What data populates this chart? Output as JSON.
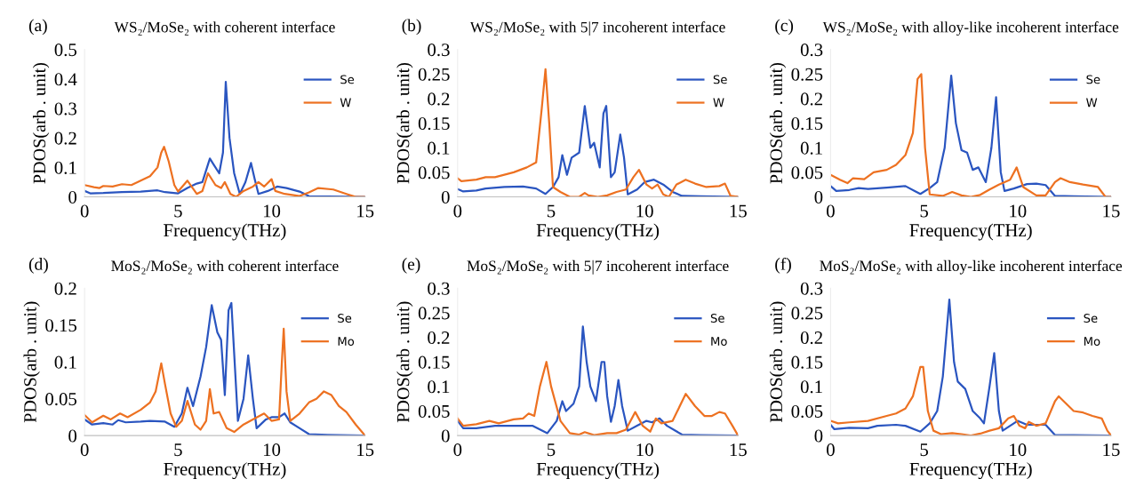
{
  "chart_data": [
    {
      "type": "line",
      "title": "WS₂/MoSe₂ with coherent interface",
      "annotations": [
        "(a)"
      ],
      "xlabel": "Frequency(THz)",
      "ylabel": "PDOS(arb . unit)",
      "xlim": [
        0,
        15
      ],
      "xticks": [
        0,
        5,
        10,
        15
      ],
      "ylim": [
        0,
        0.5
      ],
      "yticks": [
        0,
        0.1,
        0.2,
        0.3,
        0.4,
        0.5
      ],
      "grid": false,
      "legend": "upper right",
      "marker": "none",
      "line_style": "solid",
      "series": [
        {
          "name": "Se",
          "color": "#2a55c0",
          "x": [
            0,
            0.3,
            1,
            2,
            3,
            3.9,
            4.3,
            5,
            5.5,
            6,
            6.3,
            6.5,
            6.7,
            6.9,
            7.2,
            7.4,
            7.55,
            7.75,
            8.0,
            8.3,
            8.6,
            8.9,
            9.1,
            9.3,
            9.8,
            10.3,
            10.8,
            11.5,
            12,
            13,
            15
          ],
          "values": [
            0.02,
            0.012,
            0.013,
            0.016,
            0.018,
            0.022,
            0.016,
            0.012,
            0.03,
            0.045,
            0.05,
            0.09,
            0.13,
            0.11,
            0.08,
            0.15,
            0.39,
            0.2,
            0.08,
            0.01,
            0.05,
            0.115,
            0.06,
            0.01,
            0.02,
            0.035,
            0.03,
            0.018,
            0.002,
            0.001,
            0
          ]
        },
        {
          "name": "W",
          "color": "#ed7121",
          "x": [
            0,
            0.5,
            0.8,
            1,
            1.5,
            2,
            2.5,
            3,
            3.5,
            3.9,
            4.1,
            4.25,
            4.5,
            4.8,
            5.0,
            5.5,
            6,
            6.3,
            6.6,
            7,
            7.3,
            7.5,
            7.8,
            8.1,
            8.5,
            9,
            9.3,
            9.6,
            10.0,
            10.2,
            10.7,
            11.5,
            12,
            12.5,
            13.3,
            14,
            14.5,
            15
          ],
          "values": [
            0.04,
            0.033,
            0.03,
            0.037,
            0.035,
            0.043,
            0.04,
            0.055,
            0.07,
            0.1,
            0.15,
            0.17,
            0.12,
            0.04,
            0.018,
            0.055,
            0.01,
            0.02,
            0.08,
            0.04,
            0.03,
            0.05,
            0.01,
            0,
            0.02,
            0.035,
            0.05,
            0.035,
            0.06,
            0.02,
            0.01,
            0.003,
            0.015,
            0.03,
            0.025,
            0.01,
            0,
            0
          ]
        }
      ]
    },
    {
      "type": "line",
      "title": "WS₂/MoSe₂ with 5|7 incoherent interface",
      "annotations": [
        "(b)"
      ],
      "xlabel": "Frequency(THz)",
      "ylabel": "PDOS(arb . unit)",
      "xlim": [
        0,
        15
      ],
      "xticks": [
        0,
        5,
        10,
        15
      ],
      "ylim": [
        0,
        0.3
      ],
      "yticks": [
        0,
        0.05,
        0.1,
        0.15,
        0.2,
        0.25,
        0.3
      ],
      "grid": false,
      "legend": "upper right",
      "marker": "none",
      "line_style": "solid",
      "series": [
        {
          "name": "Se",
          "color": "#2a55c0",
          "x": [
            0,
            0.3,
            1,
            1.5,
            2.5,
            3.5,
            4.2,
            4.7,
            5.1,
            5.4,
            5.6,
            5.85,
            6.1,
            6.5,
            6.8,
            7.1,
            7.3,
            7.6,
            7.8,
            7.95,
            8.2,
            8.4,
            8.7,
            8.9,
            9.1,
            9.6,
            10,
            10.5,
            11,
            11.5,
            12,
            13,
            15
          ],
          "values": [
            0.016,
            0.011,
            0.013,
            0.017,
            0.02,
            0.021,
            0.017,
            0.006,
            0.02,
            0.04,
            0.085,
            0.045,
            0.08,
            0.09,
            0.185,
            0.1,
            0.11,
            0.06,
            0.17,
            0.185,
            0.04,
            0.05,
            0.127,
            0.08,
            0.005,
            0.015,
            0.03,
            0.035,
            0.025,
            0.01,
            0.002,
            0.001,
            0
          ]
        },
        {
          "name": "W",
          "color": "#ed7121",
          "x": [
            0,
            0.2,
            1,
            1.5,
            2,
            3,
            3.7,
            4.2,
            4.5,
            4.7,
            4.9,
            5.1,
            5.5,
            6,
            6.5,
            6.8,
            7,
            7.5,
            8,
            8.5,
            9,
            9.4,
            9.7,
            10.1,
            10.4,
            10.7,
            11,
            11.3,
            11.7,
            12.2,
            12.7,
            13.3,
            14,
            14.3,
            14.6,
            15
          ],
          "values": [
            0.038,
            0.032,
            0.035,
            0.04,
            0.04,
            0.05,
            0.06,
            0.07,
            0.18,
            0.26,
            0.15,
            0.02,
            0.01,
            0,
            0,
            0.008,
            0.003,
            0,
            0.003,
            0.01,
            0.015,
            0.04,
            0.055,
            0.025,
            0.017,
            0.025,
            0.005,
            0,
            0.025,
            0.035,
            0.027,
            0.02,
            0.022,
            0.027,
            0.002,
            0
          ]
        }
      ]
    },
    {
      "type": "line",
      "title": "WS₂/MoSe₂ with alloy-like incoherent interface",
      "annotations": [
        "(c)"
      ],
      "xlabel": "Frequency(THz)",
      "ylabel": "PDOS(arb . unit)",
      "xlim": [
        0,
        15
      ],
      "xticks": [
        0,
        5,
        10,
        15
      ],
      "ylim": [
        0,
        0.3
      ],
      "yticks": [
        0,
        0.05,
        0.1,
        0.15,
        0.2,
        0.25,
        0.3
      ],
      "grid": false,
      "legend": "upper right",
      "marker": "none",
      "line_style": "solid",
      "series": [
        {
          "name": "Se",
          "color": "#2a55c0",
          "x": [
            0,
            0.3,
            1,
            1.5,
            2,
            3,
            4,
            4.5,
            4.8,
            5.3,
            5.7,
            6.1,
            6.45,
            6.7,
            7,
            7.3,
            7.6,
            7.9,
            8.3,
            8.6,
            8.85,
            9.1,
            9.3,
            9.8,
            10.5,
            11,
            11.5,
            12,
            13,
            15
          ],
          "values": [
            0.022,
            0.012,
            0.014,
            0.018,
            0.016,
            0.019,
            0.022,
            0.012,
            0.006,
            0.018,
            0.03,
            0.1,
            0.247,
            0.15,
            0.095,
            0.09,
            0.055,
            0.06,
            0.03,
            0.1,
            0.203,
            0.05,
            0.012,
            0.017,
            0.026,
            0.027,
            0.024,
            0.002,
            0.001,
            0
          ]
        },
        {
          "name": "W",
          "color": "#ed7121",
          "x": [
            0,
            0.5,
            0.9,
            1.2,
            1.8,
            2.3,
            3,
            3.5,
            4,
            4.4,
            4.65,
            4.85,
            5.05,
            5.3,
            6,
            6.5,
            7,
            7.5,
            8,
            8.5,
            9,
            9.6,
            9.95,
            10.3,
            11,
            11.5,
            12,
            12.3,
            12.8,
            13.5,
            14.3,
            14.7,
            15
          ],
          "values": [
            0.045,
            0.035,
            0.028,
            0.038,
            0.036,
            0.05,
            0.055,
            0.065,
            0.085,
            0.13,
            0.24,
            0.25,
            0.1,
            0.005,
            0.002,
            0.01,
            0.003,
            0,
            0.004,
            0.015,
            0.025,
            0.035,
            0.06,
            0.02,
            0.003,
            0.003,
            0.03,
            0.038,
            0.03,
            0.025,
            0.02,
            0,
            0
          ]
        }
      ]
    },
    {
      "type": "line",
      "title": "MoS₂/MoSe₂ with coherent interface",
      "annotations": [
        "(d)"
      ],
      "xlabel": "Frequency(THz)",
      "ylabel": "PDOS(arb . unit)",
      "xlim": [
        0,
        15
      ],
      "xticks": [
        0,
        5,
        10,
        15
      ],
      "ylim": [
        0,
        0.2
      ],
      "yticks": [
        0,
        0.05,
        0.1,
        0.15,
        0.2
      ],
      "grid": false,
      "legend": "upper right",
      "marker": "none",
      "line_style": "solid",
      "series": [
        {
          "name": "Se",
          "color": "#2a55c0",
          "x": [
            0,
            0.4,
            1,
            1.5,
            1.8,
            2.2,
            3,
            3.5,
            4.3,
            4.8,
            5.2,
            5.5,
            5.8,
            6.2,
            6.5,
            6.8,
            7.1,
            7.3,
            7.5,
            7.7,
            7.85,
            8.2,
            8.5,
            8.75,
            9.0,
            9.2,
            9.7,
            10,
            10.4,
            10.7,
            11,
            11.5,
            12,
            13,
            15
          ],
          "values": [
            0.022,
            0.015,
            0.017,
            0.015,
            0.021,
            0.018,
            0.019,
            0.02,
            0.019,
            0.012,
            0.03,
            0.065,
            0.04,
            0.08,
            0.12,
            0.177,
            0.14,
            0.13,
            0.055,
            0.17,
            0.18,
            0.02,
            0.05,
            0.109,
            0.05,
            0.01,
            0.022,
            0.025,
            0.025,
            0.03,
            0.018,
            0.01,
            0.002,
            0.001,
            0
          ]
        },
        {
          "name": "Mo",
          "color": "#ed7121",
          "x": [
            0,
            0.4,
            1,
            1.4,
            1.9,
            2.3,
            3,
            3.5,
            3.8,
            4.1,
            4.3,
            4.6,
            4.9,
            5.2,
            5.5,
            5.9,
            6.2,
            6.5,
            6.7,
            6.9,
            7.2,
            7.6,
            8,
            8.5,
            9,
            9.6,
            10,
            10.4,
            10.55,
            10.65,
            10.8,
            11,
            11.5,
            12,
            12.4,
            12.8,
            13.2,
            13.6,
            14,
            14.5,
            15
          ],
          "values": [
            0.028,
            0.018,
            0.027,
            0.022,
            0.03,
            0.025,
            0.035,
            0.045,
            0.06,
            0.098,
            0.07,
            0.03,
            0.012,
            0.02,
            0.047,
            0.015,
            0.008,
            0.02,
            0.063,
            0.03,
            0.032,
            0.01,
            0.005,
            0.015,
            0.022,
            0.03,
            0.02,
            0.022,
            0.1,
            0.145,
            0.06,
            0.02,
            0.03,
            0.045,
            0.05,
            0.06,
            0.055,
            0.04,
            0.032,
            0.015,
            0
          ]
        }
      ]
    },
    {
      "type": "line",
      "title": "MoS₂/MoSe₂ with 5|7 incoherent interface",
      "annotations": [
        "(e)"
      ],
      "xlabel": "Frequency(THz)",
      "ylabel": "PDOS(arb . unit)",
      "xlim": [
        0,
        15
      ],
      "xticks": [
        0,
        5,
        10,
        15
      ],
      "ylim": [
        0,
        0.3
      ],
      "yticks": [
        0,
        0.05,
        0.1,
        0.15,
        0.2,
        0.25,
        0.3
      ],
      "grid": false,
      "legend": "upper right",
      "marker": "none",
      "line_style": "solid",
      "series": [
        {
          "name": "Se",
          "color": "#2a55c0",
          "x": [
            0,
            0.3,
            1,
            2,
            3,
            4,
            4.8,
            5.3,
            5.6,
            5.8,
            6.2,
            6.5,
            6.7,
            6.9,
            7.1,
            7.4,
            7.7,
            7.85,
            8.0,
            8.2,
            8.4,
            8.6,
            8.8,
            9.1,
            9.6,
            10.1,
            10.4,
            10.8,
            11.2,
            12,
            13,
            15
          ],
          "values": [
            0.03,
            0.015,
            0.015,
            0.02,
            0.02,
            0.02,
            0.005,
            0.03,
            0.07,
            0.05,
            0.065,
            0.1,
            0.222,
            0.15,
            0.1,
            0.07,
            0.15,
            0.15,
            0.08,
            0.028,
            0.06,
            0.113,
            0.06,
            0.01,
            0.02,
            0.03,
            0.027,
            0.035,
            0.02,
            0.002,
            0.001,
            0
          ]
        },
        {
          "name": "Mo",
          "color": "#ed7121",
          "x": [
            0,
            0.3,
            1,
            1.7,
            2.2,
            3,
            3.5,
            3.8,
            4.1,
            4.4,
            4.75,
            5.0,
            5.5,
            6,
            6.5,
            6.8,
            7.3,
            8,
            8.5,
            9,
            9.5,
            9.9,
            10.3,
            10.6,
            10.9,
            11.5,
            12.2,
            12.7,
            13.2,
            13.6,
            14,
            14.3,
            14.7,
            15
          ],
          "values": [
            0.035,
            0.02,
            0.023,
            0.03,
            0.025,
            0.033,
            0.035,
            0.045,
            0.04,
            0.1,
            0.15,
            0.1,
            0.03,
            0.005,
            0.002,
            0.007,
            0.001,
            0.005,
            0.005,
            0.012,
            0.048,
            0.02,
            0.008,
            0.035,
            0.025,
            0.03,
            0.085,
            0.06,
            0.04,
            0.04,
            0.048,
            0.045,
            0.02,
            0
          ]
        }
      ]
    },
    {
      "type": "line",
      "title": "MoS₂/MoSe₂ with alloy-like incoherent interface",
      "annotations": [
        "(f)"
      ],
      "xlabel": "Frequency(THz)",
      "ylabel": "PDOS(arb . unit)",
      "xlim": [
        0,
        15
      ],
      "xticks": [
        0,
        5,
        10,
        15
      ],
      "ylim": [
        0,
        0.3
      ],
      "yticks": [
        0,
        0.05,
        0.1,
        0.15,
        0.2,
        0.25,
        0.3
      ],
      "grid": false,
      "legend": "upper right",
      "marker": "none",
      "line_style": "solid",
      "series": [
        {
          "name": "Se",
          "color": "#2a55c0",
          "x": [
            0,
            0.2,
            1,
            2,
            2.5,
            3.5,
            4,
            4.8,
            5.3,
            5.7,
            6.0,
            6.35,
            6.6,
            6.8,
            7.2,
            7.6,
            8,
            8.2,
            8.5,
            8.75,
            9.0,
            9.2,
            9.6,
            10.0,
            10.5,
            11.5,
            12,
            13,
            15
          ],
          "values": [
            0.022,
            0.013,
            0.016,
            0.015,
            0.02,
            0.022,
            0.02,
            0.008,
            0.025,
            0.05,
            0.12,
            0.277,
            0.15,
            0.11,
            0.095,
            0.05,
            0.035,
            0.025,
            0.1,
            0.168,
            0.05,
            0.01,
            0.02,
            0.03,
            0.022,
            0.022,
            0.001,
            0.001,
            0
          ]
        },
        {
          "name": "Mo",
          "color": "#ed7121",
          "x": [
            0,
            0.4,
            1,
            2,
            3,
            3.5,
            4,
            4.4,
            4.8,
            4.95,
            5.2,
            5.5,
            5.9,
            6.5,
            7,
            7.5,
            8,
            8.5,
            9,
            9.5,
            9.8,
            10.1,
            10.4,
            10.6,
            11,
            11.5,
            12,
            12.2,
            12.6,
            13,
            13.5,
            14,
            14.5,
            14.8,
            15
          ],
          "values": [
            0.03,
            0.025,
            0.027,
            0.03,
            0.04,
            0.045,
            0.055,
            0.08,
            0.14,
            0.14,
            0.05,
            0.01,
            0.003,
            0.005,
            0.003,
            0,
            0.004,
            0.01,
            0.015,
            0.035,
            0.04,
            0.02,
            0.015,
            0.028,
            0.02,
            0.025,
            0.07,
            0.08,
            0.065,
            0.05,
            0.047,
            0.04,
            0.035,
            0.01,
            0
          ]
        }
      ]
    }
  ]
}
